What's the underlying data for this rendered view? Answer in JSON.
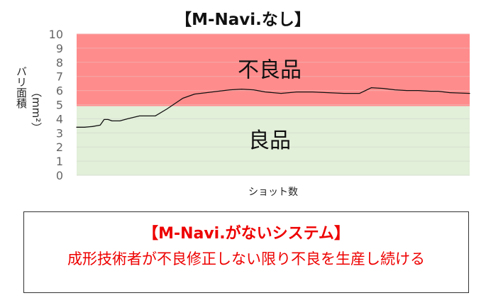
{
  "chart_data": {
    "type": "line",
    "title": "【M-Navi.なし】",
    "ylabel": "バリ面積",
    "yunit": "（mm²）",
    "xlabel": "ショット数",
    "ylim": [
      0,
      10
    ],
    "yticks": [
      0,
      1,
      2,
      3,
      4,
      5,
      6,
      7,
      8,
      9,
      10
    ],
    "grid": true,
    "legend": "none",
    "regions": [
      {
        "name": "不良品",
        "y_from": 4.9,
        "y_to": 10,
        "color": "#ff8c8c"
      },
      {
        "name": "良品",
        "y_from": 0,
        "y_to": 4.9,
        "color": "#e2efd9"
      }
    ],
    "series": [
      {
        "color": "#111111",
        "x": [
          0,
          2,
          4,
          6,
          7,
          8,
          9,
          11,
          13,
          16,
          20,
          23,
          27,
          30,
          33,
          36,
          39,
          42,
          45,
          48,
          52,
          56,
          60,
          64,
          68,
          72,
          75,
          78,
          81,
          84,
          87,
          90,
          92,
          95,
          100
        ],
        "y": [
          3.4,
          3.4,
          3.45,
          3.55,
          3.95,
          3.95,
          3.85,
          3.85,
          4.0,
          4.2,
          4.2,
          4.7,
          5.45,
          5.75,
          5.85,
          5.95,
          6.05,
          6.1,
          6.05,
          5.9,
          5.8,
          5.9,
          5.9,
          5.85,
          5.8,
          5.8,
          6.2,
          6.15,
          6.05,
          6.0,
          6.0,
          5.95,
          5.95,
          5.85,
          5.8
        ]
      }
    ]
  },
  "note": {
    "heading": "【M-Navi.がないシステム】",
    "text": "成形技術者が不良修正しない限り不良を生産し続ける"
  }
}
